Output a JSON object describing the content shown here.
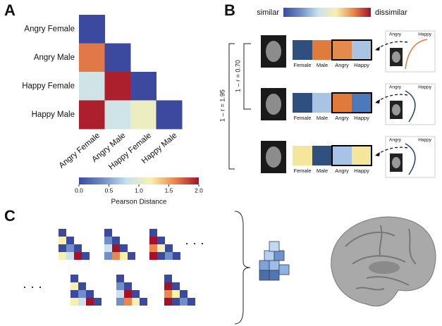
{
  "panels": {
    "a": "A",
    "b": "B",
    "c": "C"
  },
  "chart_data": {
    "type": "heatmap",
    "categories": [
      "Angry Female",
      "Angry Male",
      "Happy Female",
      "Happy Male"
    ],
    "values": [
      [
        0,
        null,
        null,
        null
      ],
      [
        1.65,
        0,
        null,
        null
      ],
      [
        0.85,
        1.95,
        0,
        null
      ],
      [
        1.95,
        0.85,
        1.1,
        0
      ]
    ],
    "colors": [
      "#3b4a9e",
      "#6f8fc6",
      "#c9e2ee",
      "#f7f1b0",
      "#e9874c",
      "#a3112a"
    ],
    "zlim": [
      0,
      2
    ],
    "zticks": [
      {
        "value": 0,
        "label": "0.0"
      },
      0.5,
      {
        "value": 1,
        "label": "1.0"
      },
      1.5,
      {
        "value": 2,
        "label": "2.0"
      }
    ],
    "colorbar_label": "Pearson Distance"
  },
  "panel_b": {
    "scale_low": "similar",
    "scale_high": "dissimilar",
    "bracket_outer": "1 – r = 1.95",
    "bracket_inner": "1 – r = 0.70",
    "cell_labels": [
      "Female",
      "Male",
      "Angry",
      "Happy"
    ],
    "rows": [
      {
        "colors": [
          "#2f4f7e",
          "#e07b3b",
          "#e38a4c",
          "#a9c3e3"
        ]
      },
      {
        "colors": [
          "#2f4f7e",
          "#a9c3e3",
          "#e07a3a",
          "#4b79b9"
        ]
      },
      {
        "colors": [
          "#f4e69b",
          "#2f4f7e",
          "#a9c3e8",
          "#f4e69b"
        ]
      }
    ],
    "plot_labels": [
      "Angry",
      "Happy"
    ]
  }
}
